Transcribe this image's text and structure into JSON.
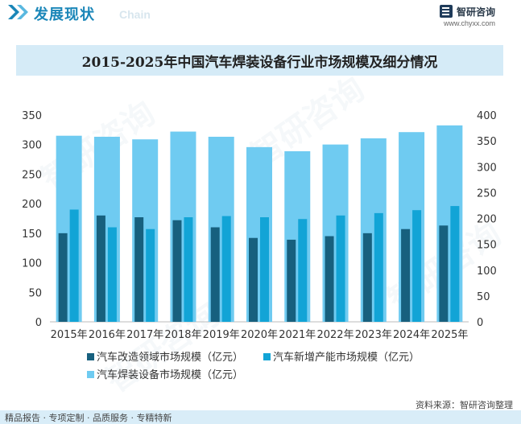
{
  "header": {
    "title": "发展现状",
    "subtitle": "Chain",
    "logo_name": "智研咨询",
    "logo_url": "www.chyxx.com"
  },
  "watermark": "智研咨询",
  "colors": {
    "dark_series": "#17607e",
    "cyan_series": "#12a4d6",
    "light_series": "#6fcbf1",
    "brand": "#1a86b8",
    "title_band": "#d5ebf7"
  },
  "chart_data": {
    "type": "bar",
    "title": "2015-2025年中国汽车焊装设备行业市场规模及细分情况",
    "categories": [
      "2015年",
      "2016年",
      "2017年",
      "2018年",
      "2019年",
      "2020年",
      "2021年",
      "2022年",
      "2023年",
      "2024年",
      "2025年"
    ],
    "left_axis": {
      "min": 0,
      "max": 350,
      "ticks": [
        0,
        50,
        100,
        150,
        200,
        250,
        300,
        350
      ]
    },
    "right_axis": {
      "min": 0,
      "max": 400,
      "ticks": [
        0,
        50,
        100,
        150,
        200,
        250,
        300,
        350,
        400
      ]
    },
    "series": [
      {
        "name": "汽车改造领域市场规模（亿元）",
        "axis": "left",
        "color": "#17607e",
        "values": [
          150,
          180,
          177,
          172,
          160,
          142,
          139,
          145,
          150,
          157,
          163
        ]
      },
      {
        "name": "汽车新增产能市场规模（亿元）",
        "axis": "left",
        "color": "#12a4d6",
        "values": [
          190,
          160,
          157,
          177,
          179,
          177,
          174,
          180,
          184,
          189,
          196
        ]
      },
      {
        "name": "汽车焊装设备市场规模（亿元）",
        "axis": "right",
        "color": "#6fcbf1",
        "values": [
          360,
          358,
          353,
          368,
          358,
          338,
          330,
          343,
          355,
          367,
          380
        ]
      }
    ]
  },
  "source": "资料来源：智研咨询整理",
  "footer": "精品报告 · 专项定制 · 品质服务 · 专精特新"
}
